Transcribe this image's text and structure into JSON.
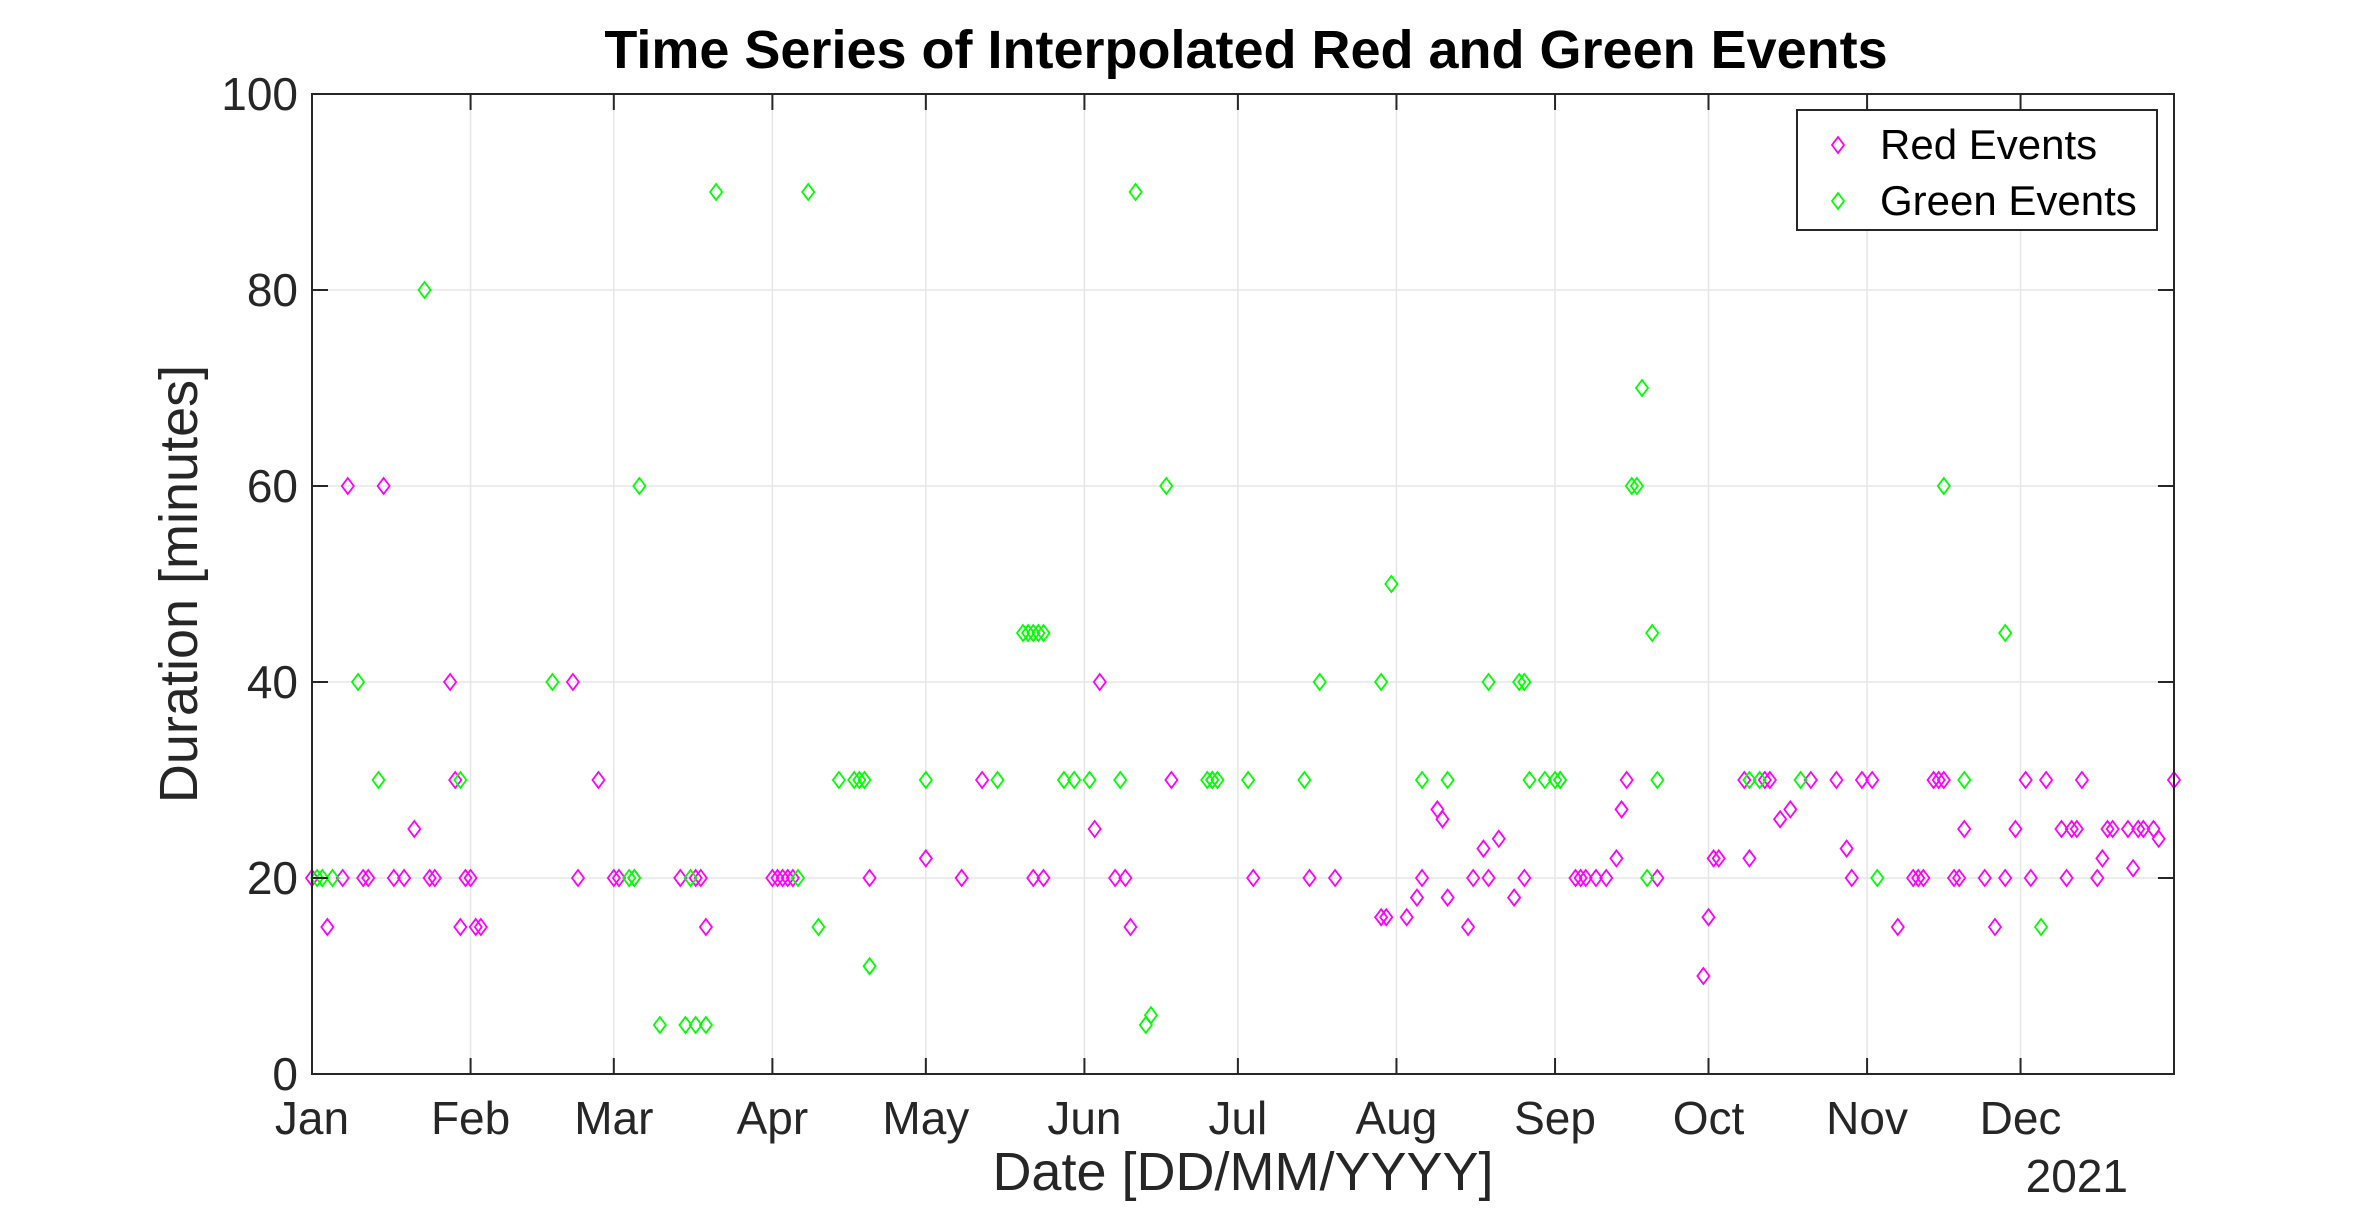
{
  "chart_data": {
    "type": "scatter",
    "title": "Time Series of Interpolated Red and Green Events",
    "xlabel": "Date [DD/MM/YYYY]",
    "ylabel": "Duration [minutes]",
    "year_label": "2021",
    "x_ticks": [
      "Jan",
      "Feb",
      "Mar",
      "Apr",
      "May",
      "Jun",
      "Jul",
      "Aug",
      "Sep",
      "Oct",
      "Nov",
      "Dec"
    ],
    "x_tick_dates": [
      "2021-01-01",
      "2021-02-01",
      "2021-03-01",
      "2021-04-01",
      "2021-05-01",
      "2021-06-01",
      "2021-07-01",
      "2021-08-01",
      "2021-09-01",
      "2021-10-01",
      "2021-11-01",
      "2021-12-01"
    ],
    "xlim": [
      "2021-01-01",
      "2021-12-31"
    ],
    "ylim": [
      0,
      100
    ],
    "y_ticks": [
      "0",
      "20",
      "40",
      "60",
      "80",
      "100"
    ],
    "grid": true,
    "legend_position": "top-right",
    "marker": "diamond",
    "series": [
      {
        "name": "Red Events",
        "color": "#ff00ff",
        "points": [
          [
            "2021-01-01",
            20
          ],
          [
            "2021-01-04",
            15
          ],
          [
            "2021-01-07",
            20
          ],
          [
            "2021-01-08",
            60
          ],
          [
            "2021-01-11",
            20
          ],
          [
            "2021-01-12",
            20
          ],
          [
            "2021-01-15",
            60
          ],
          [
            "2021-01-17",
            20
          ],
          [
            "2021-01-19",
            20
          ],
          [
            "2021-01-21",
            25
          ],
          [
            "2021-01-24",
            20
          ],
          [
            "2021-01-25",
            20
          ],
          [
            "2021-01-28",
            40
          ],
          [
            "2021-01-29",
            30
          ],
          [
            "2021-01-30",
            15
          ],
          [
            "2021-01-31",
            20
          ],
          [
            "2021-02-01",
            20
          ],
          [
            "2021-02-02",
            15
          ],
          [
            "2021-02-03",
            15
          ],
          [
            "2021-02-21",
            40
          ],
          [
            "2021-02-22",
            20
          ],
          [
            "2021-02-26",
            30
          ],
          [
            "2021-03-01",
            20
          ],
          [
            "2021-03-02",
            20
          ],
          [
            "2021-03-05",
            20
          ],
          [
            "2021-03-14",
            20
          ],
          [
            "2021-03-17",
            20
          ],
          [
            "2021-03-18",
            20
          ],
          [
            "2021-03-19",
            15
          ],
          [
            "2021-04-01",
            20
          ],
          [
            "2021-04-02",
            20
          ],
          [
            "2021-04-03",
            20
          ],
          [
            "2021-04-04",
            20
          ],
          [
            "2021-04-05",
            20
          ],
          [
            "2021-04-20",
            20
          ],
          [
            "2021-05-01",
            22
          ],
          [
            "2021-05-08",
            20
          ],
          [
            "2021-05-12",
            30
          ],
          [
            "2021-05-22",
            20
          ],
          [
            "2021-05-24",
            20
          ],
          [
            "2021-06-03",
            25
          ],
          [
            "2021-06-04",
            40
          ],
          [
            "2021-06-07",
            20
          ],
          [
            "2021-06-09",
            20
          ],
          [
            "2021-06-10",
            15
          ],
          [
            "2021-06-18",
            30
          ],
          [
            "2021-06-26",
            30
          ],
          [
            "2021-07-04",
            20
          ],
          [
            "2021-07-15",
            20
          ],
          [
            "2021-07-20",
            20
          ],
          [
            "2021-07-29",
            16
          ],
          [
            "2021-07-30",
            16
          ],
          [
            "2021-08-03",
            16
          ],
          [
            "2021-08-05",
            18
          ],
          [
            "2021-08-06",
            20
          ],
          [
            "2021-08-09",
            27
          ],
          [
            "2021-08-10",
            26
          ],
          [
            "2021-08-11",
            18
          ],
          [
            "2021-08-15",
            15
          ],
          [
            "2021-08-16",
            20
          ],
          [
            "2021-08-18",
            23
          ],
          [
            "2021-08-19",
            20
          ],
          [
            "2021-08-21",
            24
          ],
          [
            "2021-08-24",
            18
          ],
          [
            "2021-08-26",
            20
          ],
          [
            "2021-09-02",
            30
          ],
          [
            "2021-09-05",
            20
          ],
          [
            "2021-09-06",
            20
          ],
          [
            "2021-09-07",
            20
          ],
          [
            "2021-09-09",
            20
          ],
          [
            "2021-09-11",
            20
          ],
          [
            "2021-09-13",
            22
          ],
          [
            "2021-09-14",
            27
          ],
          [
            "2021-09-15",
            30
          ],
          [
            "2021-09-21",
            20
          ],
          [
            "2021-09-30",
            10
          ],
          [
            "2021-10-01",
            16
          ],
          [
            "2021-10-02",
            22
          ],
          [
            "2021-10-03",
            22
          ],
          [
            "2021-10-08",
            30
          ],
          [
            "2021-10-09",
            22
          ],
          [
            "2021-10-12",
            30
          ],
          [
            "2021-10-13",
            30
          ],
          [
            "2021-10-15",
            26
          ],
          [
            "2021-10-17",
            27
          ],
          [
            "2021-10-21",
            30
          ],
          [
            "2021-10-26",
            30
          ],
          [
            "2021-10-28",
            23
          ],
          [
            "2021-10-29",
            20
          ],
          [
            "2021-10-31",
            30
          ],
          [
            "2021-11-02",
            30
          ],
          [
            "2021-11-07",
            15
          ],
          [
            "2021-11-10",
            20
          ],
          [
            "2021-11-11",
            20
          ],
          [
            "2021-11-12",
            20
          ],
          [
            "2021-11-14",
            30
          ],
          [
            "2021-11-15",
            30
          ],
          [
            "2021-11-16",
            30
          ],
          [
            "2021-11-18",
            20
          ],
          [
            "2021-11-19",
            20
          ],
          [
            "2021-11-20",
            25
          ],
          [
            "2021-11-24",
            20
          ],
          [
            "2021-11-26",
            15
          ],
          [
            "2021-11-28",
            20
          ],
          [
            "2021-11-30",
            25
          ],
          [
            "2021-12-02",
            30
          ],
          [
            "2021-12-03",
            20
          ],
          [
            "2021-12-06",
            30
          ],
          [
            "2021-12-09",
            25
          ],
          [
            "2021-12-10",
            20
          ],
          [
            "2021-12-11",
            25
          ],
          [
            "2021-12-12",
            25
          ],
          [
            "2021-12-13",
            30
          ],
          [
            "2021-12-16",
            20
          ],
          [
            "2021-12-17",
            22
          ],
          [
            "2021-12-18",
            25
          ],
          [
            "2021-12-19",
            25
          ],
          [
            "2021-12-22",
            25
          ],
          [
            "2021-12-23",
            21
          ],
          [
            "2021-12-24",
            25
          ],
          [
            "2021-12-25",
            25
          ],
          [
            "2021-12-27",
            25
          ],
          [
            "2021-12-28",
            24
          ],
          [
            "2021-12-31",
            30
          ]
        ]
      },
      {
        "name": "Green Events",
        "color": "#00ff00",
        "points": [
          [
            "2021-01-02",
            20
          ],
          [
            "2021-01-03",
            20
          ],
          [
            "2021-01-05",
            20
          ],
          [
            "2021-01-10",
            40
          ],
          [
            "2021-01-14",
            30
          ],
          [
            "2021-01-23",
            80
          ],
          [
            "2021-01-30",
            30
          ],
          [
            "2021-02-17",
            40
          ],
          [
            "2021-03-04",
            20
          ],
          [
            "2021-03-05",
            20
          ],
          [
            "2021-03-06",
            60
          ],
          [
            "2021-03-10",
            5
          ],
          [
            "2021-03-15",
            5
          ],
          [
            "2021-03-16",
            20
          ],
          [
            "2021-03-17",
            5
          ],
          [
            "2021-03-19",
            5
          ],
          [
            "2021-03-21",
            90
          ],
          [
            "2021-04-06",
            20
          ],
          [
            "2021-04-08",
            90
          ],
          [
            "2021-04-10",
            15
          ],
          [
            "2021-04-14",
            30
          ],
          [
            "2021-04-17",
            30
          ],
          [
            "2021-04-18",
            30
          ],
          [
            "2021-04-19",
            30
          ],
          [
            "2021-04-20",
            11
          ],
          [
            "2021-05-01",
            30
          ],
          [
            "2021-05-15",
            30
          ],
          [
            "2021-05-20",
            45
          ],
          [
            "2021-05-21",
            45
          ],
          [
            "2021-05-22",
            45
          ],
          [
            "2021-05-23",
            45
          ],
          [
            "2021-05-24",
            45
          ],
          [
            "2021-05-28",
            30
          ],
          [
            "2021-05-30",
            30
          ],
          [
            "2021-06-02",
            30
          ],
          [
            "2021-06-08",
            30
          ],
          [
            "2021-06-11",
            90
          ],
          [
            "2021-06-13",
            5
          ],
          [
            "2021-06-14",
            6
          ],
          [
            "2021-06-17",
            60
          ],
          [
            "2021-06-25",
            30
          ],
          [
            "2021-06-26",
            30
          ],
          [
            "2021-06-27",
            30
          ],
          [
            "2021-07-03",
            30
          ],
          [
            "2021-07-14",
            30
          ],
          [
            "2021-07-17",
            40
          ],
          [
            "2021-07-29",
            40
          ],
          [
            "2021-07-31",
            50
          ],
          [
            "2021-08-06",
            30
          ],
          [
            "2021-08-11",
            30
          ],
          [
            "2021-08-19",
            40
          ],
          [
            "2021-08-25",
            40
          ],
          [
            "2021-08-26",
            40
          ],
          [
            "2021-08-27",
            30
          ],
          [
            "2021-08-30",
            30
          ],
          [
            "2021-09-01",
            30
          ],
          [
            "2021-09-02",
            30
          ],
          [
            "2021-09-16",
            60
          ],
          [
            "2021-09-17",
            60
          ],
          [
            "2021-09-18",
            70
          ],
          [
            "2021-09-19",
            20
          ],
          [
            "2021-09-20",
            45
          ],
          [
            "2021-09-21",
            30
          ],
          [
            "2021-10-09",
            30
          ],
          [
            "2021-10-11",
            30
          ],
          [
            "2021-10-19",
            30
          ],
          [
            "2021-11-03",
            20
          ],
          [
            "2021-11-16",
            60
          ],
          [
            "2021-11-20",
            30
          ],
          [
            "2021-11-28",
            45
          ],
          [
            "2021-12-05",
            15
          ]
        ]
      }
    ]
  }
}
